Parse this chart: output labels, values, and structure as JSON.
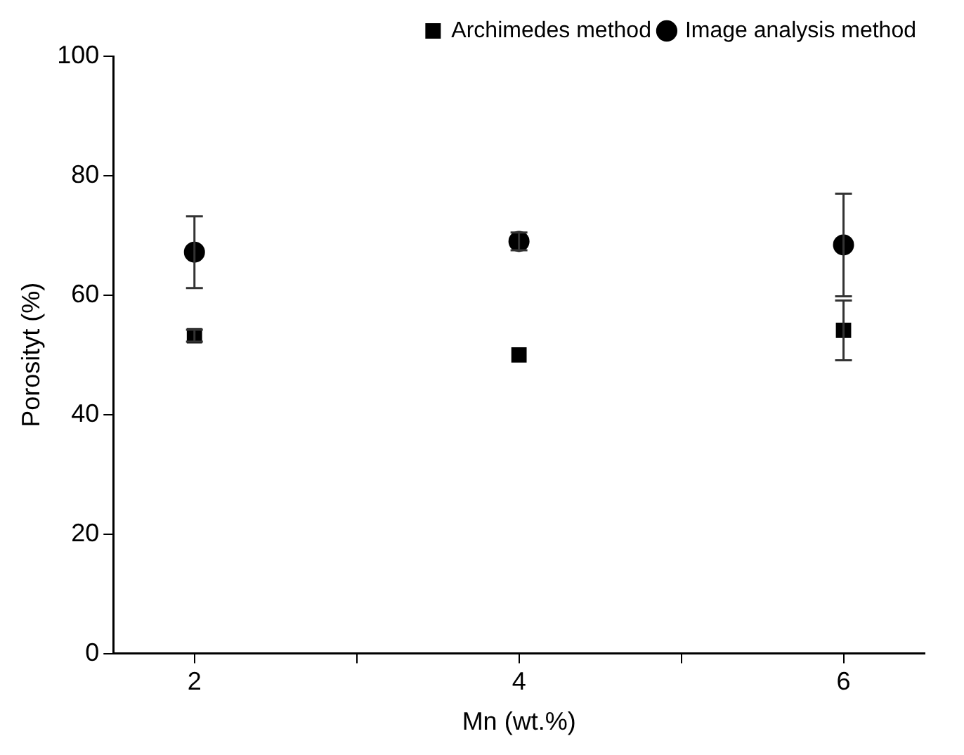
{
  "chart_data": {
    "type": "scatter",
    "xlabel": "Mn (wt.%)",
    "ylabel": "Porosityt (%)",
    "x": [
      2,
      4,
      6
    ],
    "series": [
      {
        "name": "Archimedes method",
        "color": "#000000",
        "marker": "square",
        "values": [
          53.2,
          50.0,
          54.1
        ],
        "errors": [
          1,
          null,
          5
        ]
      },
      {
        "name": "Image analysis method",
        "color": "#000000",
        "marker": "circle",
        "values": [
          67.2,
          69.0,
          68.4
        ],
        "errors": [
          6,
          1.5,
          8.6
        ]
      }
    ],
    "xlim": [
      1.5,
      6.5
    ],
    "xticks": [
      2,
      {
        "value": 3,
        "label": null
      },
      4,
      {
        "value": 5,
        "label": null
      },
      6
    ],
    "ylim": [
      0,
      100
    ],
    "yticks": [
      0,
      20,
      40,
      60,
      80,
      100
    ],
    "grid": false,
    "legend": "top right"
  }
}
